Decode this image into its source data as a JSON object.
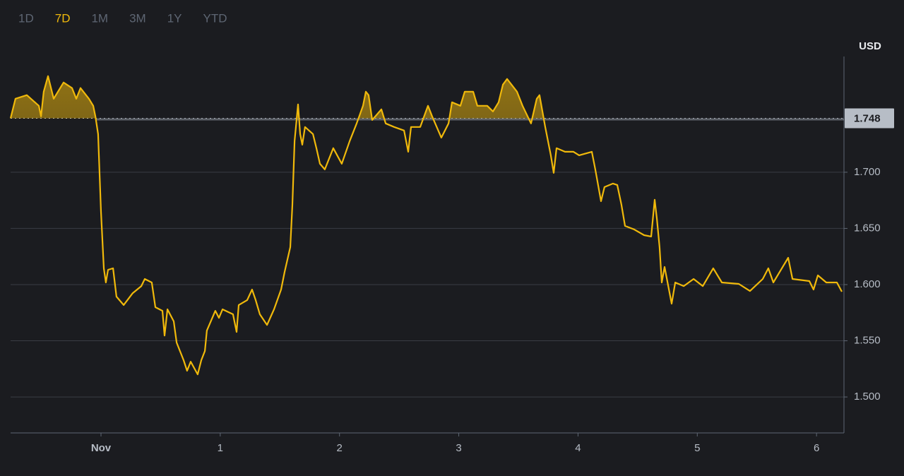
{
  "chart_data": {
    "type": "line",
    "periods": [
      "1D",
      "7D",
      "1M",
      "3M",
      "1Y",
      "YTD"
    ],
    "active_period": "7D",
    "y_axis_label": "USD",
    "reference_value": 1.748,
    "color": "#f0b90b",
    "grid": true,
    "xlim": [
      -0.758,
      6.23
    ],
    "ylim": [
      1.468,
      1.803
    ],
    "xticks": [
      {
        "value": 0,
        "label": "Nov"
      },
      1,
      2,
      3,
      4,
      5,
      6
    ],
    "yticks": [
      {
        "value": 1.5,
        "label": "1.500"
      },
      {
        "value": 1.55,
        "label": "1.550"
      },
      {
        "value": 1.6,
        "label": "1.600"
      },
      {
        "value": 1.65,
        "label": "1.650"
      },
      {
        "value": 1.7,
        "label": "1.700"
      }
    ],
    "x": [
      -0.758,
      -0.717,
      -0.622,
      -0.521,
      -0.503,
      -0.48,
      -0.444,
      -0.397,
      -0.314,
      -0.243,
      -0.207,
      -0.172,
      -0.101,
      -0.065,
      -0.047,
      -0.024,
      0,
      0.024,
      0.041,
      0.059,
      0.101,
      0.13,
      0.19,
      0.266,
      0.338,
      0.367,
      0.426,
      0.456,
      0.515,
      0.533,
      0.557,
      0.61,
      0.634,
      0.693,
      0.722,
      0.752,
      0.811,
      0.841,
      0.871,
      0.888,
      0.959,
      0.989,
      1.019,
      1.107,
      1.137,
      1.155,
      1.226,
      1.267,
      1.297,
      1.332,
      1.392,
      1.451,
      1.51,
      1.54,
      1.587,
      1.605,
      1.623,
      1.652,
      1.67,
      1.688,
      1.711,
      1.777,
      1.806,
      1.836,
      1.877,
      1.948,
      2.019,
      2.085,
      2.144,
      2.197,
      2.221,
      2.244,
      2.274,
      2.351,
      2.387,
      2.458,
      2.541,
      2.576,
      2.6,
      2.677,
      2.742,
      2.777,
      2.854,
      2.914,
      2.943,
      3.014,
      3.05,
      3.121,
      3.156,
      3.239,
      3.287,
      3.334,
      3.37,
      3.405,
      3.488,
      3.535,
      3.606,
      3.654,
      3.677,
      3.725,
      3.772,
      3.796,
      3.82,
      3.891,
      3.962,
      4.009,
      4.116,
      4.145,
      4.193,
      4.222,
      4.293,
      4.329,
      4.364,
      4.394,
      4.471,
      4.554,
      4.613,
      4.643,
      4.661,
      4.684,
      4.702,
      4.726,
      4.785,
      4.815,
      4.886,
      4.969,
      5.046,
      5.134,
      5.206,
      5.348,
      5.442,
      5.549,
      5.596,
      5.638,
      5.762,
      5.798,
      5.94,
      5.975,
      6.011,
      6.082,
      6.171,
      6.212
    ],
    "values": [
      1.748,
      1.7654,
      1.7686,
      1.7591,
      1.7497,
      1.7717,
      1.7855,
      1.7654,
      1.7799,
      1.7749,
      1.7654,
      1.7749,
      1.7654,
      1.7591,
      1.7497,
      1.734,
      1.6648,
      1.6145,
      1.6019,
      1.6132,
      1.6145,
      1.5893,
      1.5818,
      1.5924,
      1.5987,
      1.605,
      1.6019,
      1.5799,
      1.5767,
      1.5547,
      1.578,
      1.5673,
      1.5484,
      1.5327,
      1.5233,
      1.5314,
      1.5201,
      1.5327,
      1.5409,
      1.5591,
      1.5767,
      1.5704,
      1.578,
      1.5736,
      1.5579,
      1.5818,
      1.5862,
      1.5956,
      1.5862,
      1.5736,
      1.5641,
      1.578,
      1.5956,
      1.6113,
      1.6333,
      1.6711,
      1.7277,
      1.7604,
      1.734,
      1.7245,
      1.7403,
      1.734,
      1.7214,
      1.7075,
      1.7025,
      1.7214,
      1.7075,
      1.7277,
      1.7434,
      1.7591,
      1.7717,
      1.7686,
      1.7465,
      1.756,
      1.7434,
      1.7403,
      1.7371,
      1.7182,
      1.7403,
      1.7403,
      1.7591,
      1.7497,
      1.7308,
      1.7434,
      1.7623,
      1.7591,
      1.7717,
      1.7717,
      1.7591,
      1.7591,
      1.7541,
      1.7623,
      1.778,
      1.783,
      1.7717,
      1.7591,
      1.7434,
      1.7654,
      1.7686,
      1.7403,
      1.7151,
      1.6994,
      1.7214,
      1.7182,
      1.7182,
      1.7151,
      1.7182,
      1.7025,
      1.6742,
      1.6868,
      1.6899,
      1.6887,
      1.6711,
      1.6522,
      1.6491,
      1.644,
      1.6428,
      1.6755,
      1.6585,
      1.6333,
      1.6019,
      1.6157,
      1.583,
      1.6019,
      1.5987,
      1.605,
      1.5987,
      1.6145,
      1.6019,
      1.6006,
      1.5943,
      1.605,
      1.6145,
      1.6019,
      1.6239,
      1.605,
      1.6031,
      1.5956,
      1.6082,
      1.6019,
      1.6019,
      1.5937
    ]
  }
}
